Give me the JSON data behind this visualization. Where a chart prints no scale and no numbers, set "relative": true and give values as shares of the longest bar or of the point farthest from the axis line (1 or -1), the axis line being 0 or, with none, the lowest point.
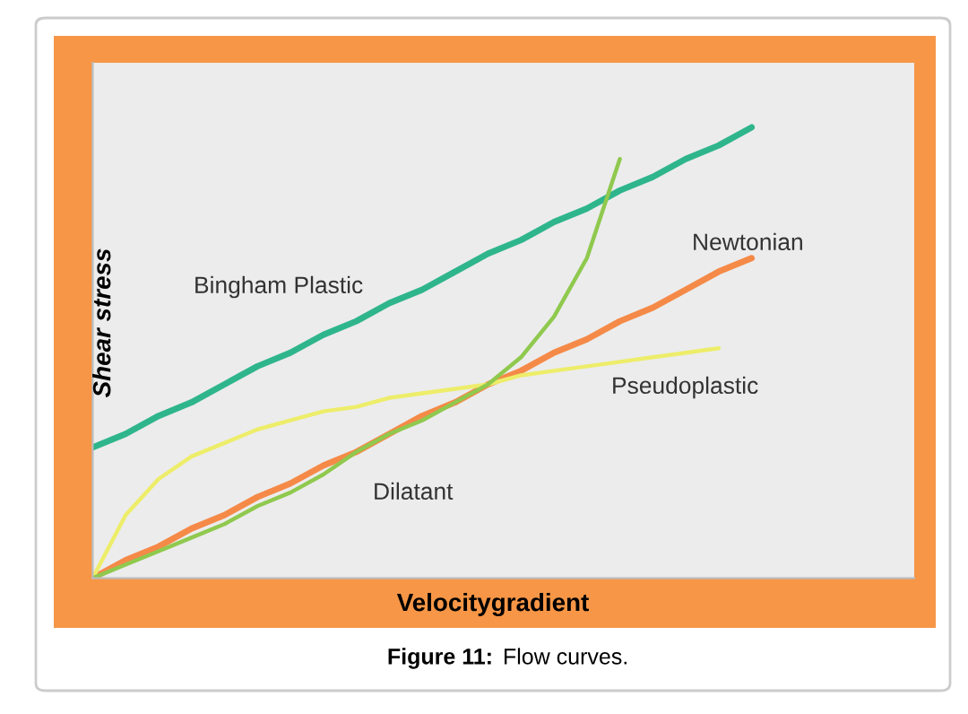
{
  "chart_data": {
    "type": "line",
    "relative": true,
    "xlabel": "Velocitygradient",
    "ylabel": "Shear stress",
    "line_style": "solid",
    "annotations": [
      "Figure 11: Flow curves."
    ],
    "categories": [
      null,
      null,
      null,
      null,
      null,
      null,
      null,
      null,
      null,
      null,
      null,
      null,
      null,
      null,
      null,
      null,
      null,
      null,
      null,
      null,
      null
    ],
    "series": [
      {
        "name": "Bingham Plastic",
        "color": "#2fb58c",
        "values": [
          0.29,
          0.32,
          0.36,
          0.39,
          0.43,
          0.47,
          0.5,
          0.54,
          0.57,
          0.61,
          0.64,
          0.68,
          0.72,
          0.75,
          0.79,
          0.82,
          0.86,
          0.89,
          0.93,
          0.96,
          1.0
        ]
      },
      {
        "name": "Newtonian",
        "color": "#f58a48",
        "values": [
          0,
          0.04,
          0.07,
          0.11,
          0.14,
          0.18,
          0.21,
          0.25,
          0.28,
          0.32,
          0.36,
          0.39,
          0.43,
          0.46,
          0.5,
          0.53,
          0.57,
          0.6,
          0.64,
          0.68,
          0.71
        ]
      },
      {
        "name": "Pseudoplastic",
        "color": "#eded6a",
        "values": [
          0,
          0.14,
          0.22,
          0.27,
          0.3,
          0.33,
          0.35,
          0.37,
          0.38,
          0.4,
          0.41,
          0.42,
          0.43,
          0.45,
          0.46,
          0.47,
          0.48,
          0.49,
          0.5,
          0.51,
          null
        ]
      },
      {
        "name": "Dilatant",
        "color": "#8fc94e",
        "values": [
          0,
          0.03,
          0.06,
          0.09,
          0.12,
          0.16,
          0.19,
          0.23,
          0.28,
          0.32,
          0.35,
          0.39,
          0.43,
          0.49,
          0.58,
          0.71,
          0.93,
          null,
          null,
          null,
          null
        ]
      }
    ]
  }
}
